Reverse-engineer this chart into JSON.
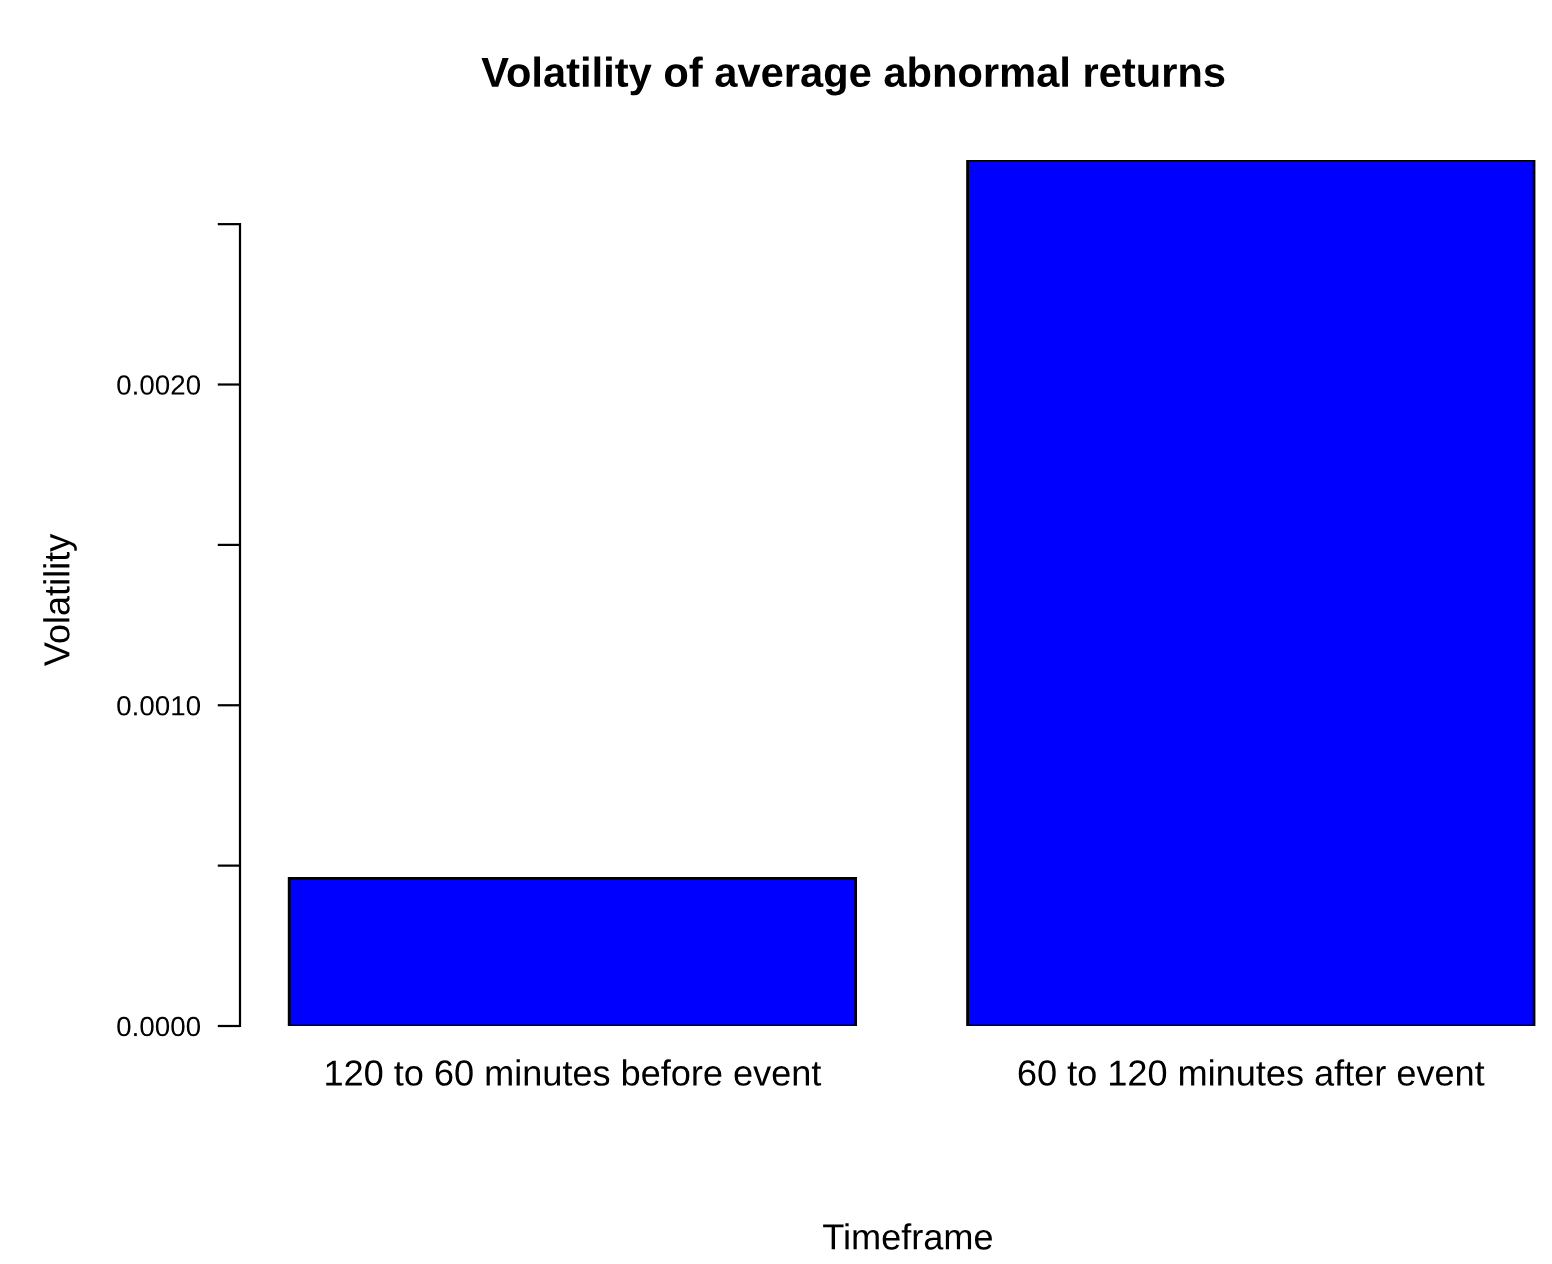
{
  "chart_data": {
    "type": "bar",
    "title": "Volatility of average abnormal returns",
    "xlabel": "Timeframe",
    "ylabel": "Volatility",
    "categories": [
      "120 to 60 minutes before event",
      "60 to 120 minutes after event"
    ],
    "values": [
      0.00046,
      0.0027
    ],
    "color": "#0000ff",
    "ylim": [
      0,
      0.0027
    ],
    "yticks": [
      {
        "value": 0,
        "label": "0.0000"
      },
      {
        "value": 0.0005,
        "label": null
      },
      {
        "value": 0.001,
        "label": "0.0010"
      },
      {
        "value": 0.0015,
        "label": null
      },
      {
        "value": 0.002,
        "label": "0.0020"
      },
      {
        "value": 0.0025,
        "label": null
      }
    ],
    "grid": false,
    "legend": false
  }
}
